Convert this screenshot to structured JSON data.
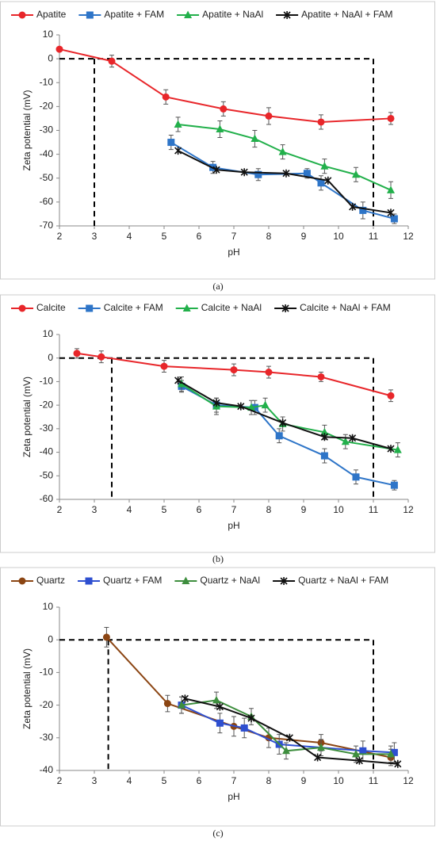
{
  "chart_data": [
    {
      "type": "line",
      "caption": "(a)",
      "xlabel": "pH",
      "ylabel": "Zeta potential (mV)",
      "xlim": [
        2,
        12
      ],
      "xticks": [
        2,
        3,
        4,
        5,
        6,
        7,
        8,
        9,
        10,
        11,
        12
      ],
      "ylim": [
        -70,
        10
      ],
      "yticks": [
        -70,
        -60,
        -50,
        -40,
        -30,
        -20,
        -10,
        0,
        10
      ],
      "reference_lines": {
        "x": [
          3,
          11
        ],
        "y": 0
      },
      "series": [
        {
          "name": "Apatite",
          "color": "#e8262a",
          "marker": "circle",
          "x": [
            2,
            3.5,
            5.05,
            6.7,
            8,
            9.5,
            11.5
          ],
          "values": [
            4,
            -1,
            -16,
            -21,
            -24,
            -26.5,
            -25
          ],
          "errors": [
            0,
            2.5,
            3,
            3,
            3.5,
            3,
            2.5
          ]
        },
        {
          "name": "Apatite + FAM",
          "color": "#2e75c8",
          "marker": "square",
          "x": [
            5.2,
            6.4,
            7.7,
            9.1,
            9.5,
            10.7,
            11.6
          ],
          "values": [
            -35,
            -45.5,
            -48.5,
            -48,
            -52,
            -63.5,
            -67
          ],
          "errors": [
            3,
            2.5,
            2.5,
            2,
            3,
            3.5,
            2
          ]
        },
        {
          "name": "Apatite + NaAl",
          "color": "#22b04b",
          "marker": "triangle",
          "x": [
            5.4,
            6.6,
            7.6,
            8.4,
            9.6,
            10.5,
            11.5
          ],
          "values": [
            -27.5,
            -29.5,
            -33.5,
            -39,
            -45,
            -48.5,
            -55
          ],
          "errors": [
            3,
            3.5,
            3.5,
            3,
            3,
            3,
            3.5
          ]
        },
        {
          "name": "Apatite + NaAl + FAM",
          "color": "#111111",
          "marker": "star",
          "x": [
            5.4,
            6.5,
            7.3,
            8.5,
            9.7,
            10.4,
            11.5
          ],
          "values": [
            -38.5,
            -46.5,
            -47.5,
            -48,
            -51,
            -62,
            -64.5
          ],
          "errors": [
            0,
            0,
            0,
            0,
            0,
            0,
            0
          ]
        }
      ]
    },
    {
      "type": "line",
      "caption": "(b)",
      "xlabel": "pH",
      "ylabel": "Zeta potential (mV)",
      "xlim": [
        2,
        12
      ],
      "xticks": [
        2,
        3,
        4,
        5,
        6,
        7,
        8,
        9,
        10,
        11,
        12
      ],
      "ylim": [
        -60,
        10
      ],
      "yticks": [
        -60,
        -50,
        -40,
        -30,
        -20,
        -10,
        0,
        10
      ],
      "reference_lines": {
        "x": [
          3.5,
          11
        ],
        "y": 0
      },
      "series": [
        {
          "name": "Calcite",
          "color": "#e8262a",
          "marker": "circle",
          "x": [
            2.5,
            3.2,
            5,
            7,
            8,
            9.5,
            11.5
          ],
          "values": [
            2,
            0.5,
            -3.5,
            -5,
            -6,
            -8,
            -16
          ],
          "errors": [
            2,
            2.5,
            2.5,
            2.5,
            2.5,
            2,
            2.5
          ]
        },
        {
          "name": "Calcite + FAM",
          "color": "#2e75c8",
          "marker": "square",
          "x": [
            5.5,
            6.5,
            7.6,
            8.3,
            9.6,
            10.5,
            11.6
          ],
          "values": [
            -12,
            -20,
            -21,
            -33,
            -41.5,
            -50.5,
            -54
          ],
          "errors": [
            2.5,
            3,
            3,
            3,
            3,
            3,
            2
          ]
        },
        {
          "name": "Calcite + NaAl",
          "color": "#22b04b",
          "marker": "triangle",
          "x": [
            5.5,
            6.5,
            7.5,
            7.9,
            8.4,
            9.6,
            10.2,
            11.7
          ],
          "values": [
            -11,
            -20.5,
            -21,
            -20,
            -28,
            -31.5,
            -35.5,
            -39
          ],
          "errors": [
            3,
            3.5,
            3,
            3,
            3,
            3,
            3,
            3
          ]
        },
        {
          "name": "Calcite + NaAl + FAM",
          "color": "#111111",
          "marker": "star",
          "x": [
            5.4,
            6.5,
            7.2,
            8.4,
            9.6,
            10.4,
            11.5
          ],
          "values": [
            -9.5,
            -19,
            -20.5,
            -27.5,
            -33.5,
            -34,
            -38.5
          ],
          "errors": [
            0,
            0,
            0,
            0,
            0,
            0,
            0
          ]
        }
      ]
    },
    {
      "type": "line",
      "caption": "(c)",
      "xlabel": "pH",
      "ylabel": "Zeta potential (mV)",
      "xlim": [
        2,
        12
      ],
      "xticks": [
        2,
        3,
        4,
        5,
        6,
        7,
        8,
        9,
        10,
        11,
        12
      ],
      "ylim": [
        -40,
        10
      ],
      "yticks": [
        -40,
        -30,
        -20,
        -10,
        0,
        10
      ],
      "reference_lines": {
        "x": [
          3.4,
          11
        ],
        "y": 0
      },
      "series": [
        {
          "name": "Quartz",
          "color": "#8b4513",
          "marker": "circle",
          "x": [
            3.35,
            5.1,
            7,
            8,
            9.5,
            11.5
          ],
          "values": [
            0.8,
            -19.5,
            -26.5,
            -30,
            -31.5,
            -36
          ],
          "errors": [
            3,
            2.5,
            3,
            3,
            2.5,
            2.5
          ]
        },
        {
          "name": "Quartz + FAM",
          "color": "#2e4fd0",
          "marker": "square",
          "x": [
            5.5,
            6.6,
            7.3,
            8.3,
            10.7,
            11.6
          ],
          "values": [
            -20,
            -25.5,
            -27,
            -32,
            -34,
            -34.5
          ],
          "errors": [
            2.5,
            3,
            3,
            3,
            3,
            3
          ]
        },
        {
          "name": "Quartz + NaAl",
          "color": "#3e8e3e",
          "marker": "triangle",
          "x": [
            5.5,
            6.5,
            7.5,
            8.5,
            9.5,
            10.5,
            11.5
          ],
          "values": [
            -20,
            -18.5,
            -23.5,
            -34,
            -33,
            -35,
            -35
          ],
          "errors": [
            2.5,
            2.5,
            2.5,
            2.5,
            2.5,
            2.5,
            2.5
          ]
        },
        {
          "name": "Quartz + NaAl + FAM",
          "color": "#111111",
          "marker": "star",
          "x": [
            5.6,
            6.6,
            7.5,
            8.6,
            9.4,
            10.6,
            11.7
          ],
          "values": [
            -18,
            -20.5,
            -24,
            -30,
            -36,
            -37,
            -38
          ],
          "errors": [
            0,
            0,
            0,
            0,
            0,
            0,
            0
          ]
        }
      ]
    }
  ]
}
